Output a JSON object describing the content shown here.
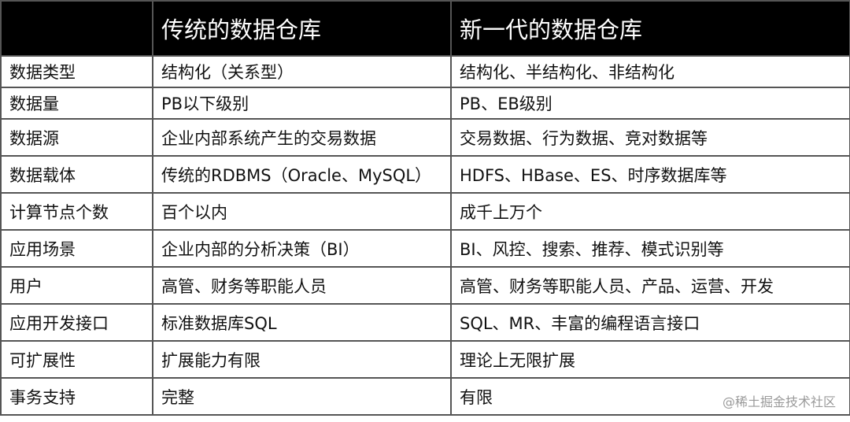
{
  "header": {
    "col1": "",
    "col2": "传统的数据仓库",
    "col3": "新一代的数据仓库"
  },
  "rows": [
    {
      "label": "数据类型",
      "traditional": "结构化（关系型）",
      "new": "结构化、半结构化、非结构化"
    },
    {
      "label": "数据量",
      "traditional": "PB以下级别",
      "new": "PB、EB级别"
    },
    {
      "label": "数据源",
      "traditional": "企业内部系统产生的交易数据",
      "new": "交易数据、行为数据、竞对数据等"
    },
    {
      "label": "数据载体",
      "traditional": "传统的RDBMS（Oracle、MySQL）",
      "new": "HDFS、HBase、ES、时序数据库等"
    },
    {
      "label": "计算节点个数",
      "traditional": "百个以内",
      "new": "成千上万个"
    },
    {
      "label": "应用场景",
      "traditional": "企业内部的分析决策（BI）",
      "new": "BI、风控、搜索、推荐、模式识别等"
    },
    {
      "label": "用户",
      "traditional": "高管、财务等职能人员",
      "new": "高管、财务等职能人员、产品、运营、开发"
    },
    {
      "label": "应用开发接口",
      "traditional": "标准数据库SQL",
      "new": "SQL、MR、丰富的编程语言接口"
    },
    {
      "label": "可扩展性",
      "traditional": "扩展能力有限",
      "new": "理论上无限扩展"
    },
    {
      "label": "事务支持",
      "traditional": "完整",
      "new": "有限"
    }
  ],
  "watermark": "@稀土掘金技术社区"
}
